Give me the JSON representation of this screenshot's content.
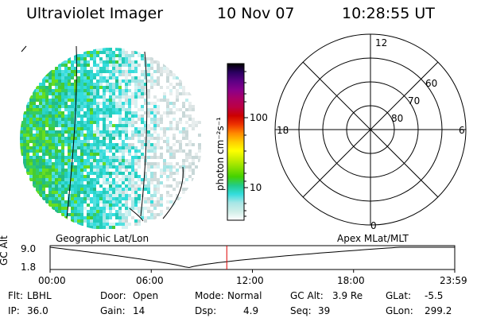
{
  "header": {
    "instrument": "Ultraviolet Imager",
    "date": "10 Nov 07",
    "time": "10:28:55 UT"
  },
  "colorbar": {
    "unit_label": "photon cm⁻²s⁻¹",
    "tick_labels": [
      "100",
      "10"
    ]
  },
  "polar_plot": {
    "mlt_labels": {
      "top": "12",
      "left": "18",
      "right": "6",
      "bottom": "0"
    },
    "lat_labels": [
      "60",
      "70",
      "80"
    ]
  },
  "timeline": {
    "left_title": "Geographic Lat/Lon",
    "right_title": "Apex MLat/MLT",
    "y_label": "GC Alt",
    "y_ticks": [
      "9.0",
      "1.8"
    ],
    "x_ticks": [
      "00:00",
      "06:00",
      "12:00",
      "18:00",
      "23:59"
    ],
    "current_time_hours": 10.48
  },
  "info": {
    "row1": [
      {
        "label": "Flt:",
        "value": "LBHL"
      },
      {
        "label": "Door:",
        "value": "Open"
      },
      {
        "label": "Mode:",
        "value": "Normal"
      },
      {
        "label": "GC Alt:",
        "value": "3.9 Re"
      },
      {
        "label": "GLat:",
        "value": "-5.5"
      }
    ],
    "row2": [
      {
        "label": "IP:",
        "value": "36.0"
      },
      {
        "label": "Gain:",
        "value": "14"
      },
      {
        "label": "Dsp:",
        "value": "4.9"
      },
      {
        "label": "Seq:",
        "value": "39"
      },
      {
        "label": "GLon:",
        "value": "299.2"
      }
    ]
  },
  "colors": {
    "colorbar": [
      "#ffffff",
      "#cfeee8",
      "#a8e6e6",
      "#33dddd",
      "#22cc88",
      "#44d200",
      "#88e000",
      "#c8ee00",
      "#ffff00",
      "#ffcc00",
      "#ff8800",
      "#ee3300",
      "#cc0000",
      "#bb0044",
      "#aa0066",
      "#88008a",
      "#5c0084",
      "#2a0060",
      "#000000"
    ],
    "timeline_marker": "#dd0000"
  }
}
